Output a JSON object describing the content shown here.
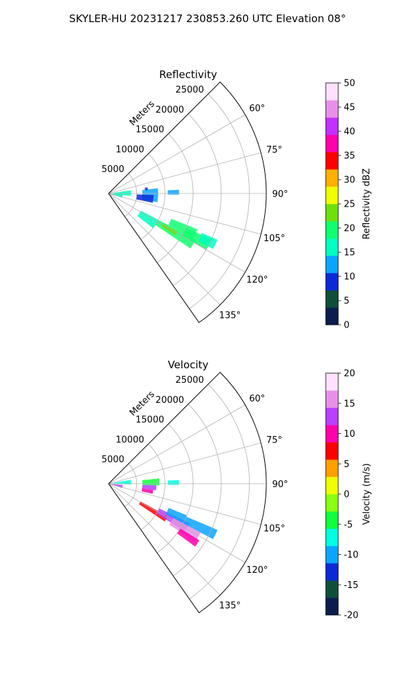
{
  "figure": {
    "title": "SKYLER-HU  20231217  230853.260 UTC Elevation 08°"
  },
  "chart_data": [
    {
      "type": "heatmap",
      "subtype": "polar-sector",
      "title": "Reflectivity",
      "radial_axis_label": "Meters",
      "radial_range": [
        0,
        28000
      ],
      "radial_ticks": [
        5000,
        10000,
        15000,
        20000,
        25000
      ],
      "radial_tick_labels": [
        "5000",
        "10000",
        "15000",
        "20000",
        "25000"
      ],
      "azimuth_range_deg": [
        45,
        145
      ],
      "azimuth_ticks_deg": [
        60,
        75,
        90,
        105,
        120,
        135
      ],
      "azimuth_tick_labels": [
        "60°",
        "75°",
        "90°",
        "105°",
        "120°",
        "135°"
      ],
      "grid": true,
      "colorbar": {
        "label": "Reflectivity dBZ",
        "range": [
          0,
          50
        ],
        "ticks": [
          0,
          5,
          10,
          15,
          20,
          25,
          30,
          35,
          40,
          45,
          50
        ],
        "tick_labels": [
          "0",
          "5",
          "10",
          "15",
          "20",
          "25",
          "30",
          "35",
          "40",
          "45",
          "50"
        ],
        "colors": [
          "#0b1d4d",
          "#0f4f3a",
          "#0a2ad8",
          "#0aa5ff",
          "#00ffc0",
          "#10ff70",
          "#6fe00a",
          "#f0ff00",
          "#ffb000",
          "#ff0000",
          "#ff00aa",
          "#c030ff",
          "#e890e8",
          "#ffe0ff"
        ]
      },
      "echo_regions": [
        {
          "az": [
            93,
            108
          ],
          "r": [
            0,
            2500
          ],
          "value": 16
        },
        {
          "az": [
            82,
            96
          ],
          "r": [
            1000,
            4000
          ],
          "value": 15
        },
        {
          "az": [
            84,
            100
          ],
          "r": [
            6000,
            8800
          ],
          "value": 13
        },
        {
          "az": [
            92,
            102
          ],
          "r": [
            5000,
            8000
          ],
          "value": 9
        },
        {
          "az": [
            87,
            91
          ],
          "r": [
            10500,
            12500
          ],
          "value": 14
        },
        {
          "az": [
            81,
            85
          ],
          "r": [
            6500,
            7000
          ],
          "value": 8
        },
        {
          "az": [
            118,
            128
          ],
          "r": [
            6500,
            10000
          ],
          "value": 16
        },
        {
          "az": [
            118,
            124
          ],
          "r": [
            10000,
            17500
          ],
          "value": 20
        },
        {
          "az": [
            112,
            118
          ],
          "r": [
            12000,
            17000
          ],
          "value": 19
        },
        {
          "az": [
            114,
            120
          ],
          "r": [
            15000,
            20000
          ],
          "value": 18
        },
        {
          "az": [
            119,
            122
          ],
          "r": [
            11000,
            14000
          ],
          "value": 24
        },
        {
          "az": [
            113,
            118
          ],
          "r": [
            18000,
            21000
          ],
          "value": 17
        }
      ]
    },
    {
      "type": "heatmap",
      "subtype": "polar-sector",
      "title": "Velocity",
      "radial_axis_label": "Meters",
      "radial_range": [
        0,
        28000
      ],
      "radial_ticks": [
        5000,
        10000,
        15000,
        20000,
        25000
      ],
      "radial_tick_labels": [
        "5000",
        "10000",
        "15000",
        "20000",
        "25000"
      ],
      "azimuth_range_deg": [
        45,
        145
      ],
      "azimuth_ticks_deg": [
        60,
        75,
        90,
        105,
        120,
        135
      ],
      "azimuth_tick_labels": [
        "60°",
        "75°",
        "90°",
        "105°",
        "120°",
        "135°"
      ],
      "grid": true,
      "colorbar": {
        "label": "Velocity (m/s)",
        "range": [
          -20,
          20
        ],
        "ticks": [
          -20,
          -15,
          -10,
          -5,
          0,
          5,
          10,
          15,
          20
        ],
        "tick_labels": [
          "-20",
          "-15",
          "-10",
          "-5",
          "0",
          "5",
          "10",
          "15",
          "20"
        ],
        "colors": [
          "#0b1d4d",
          "#0f4f3a",
          "#0a2ad8",
          "#0aa5ff",
          "#00ffe0",
          "#10ff40",
          "#8aff10",
          "#f0ff00",
          "#ffa000",
          "#ff0000",
          "#ff00aa",
          "#b840ff",
          "#e890e8",
          "#ffe0ff"
        ]
      },
      "echo_regions": [
        {
          "az": [
            80,
            92
          ],
          "r": [
            1000,
            4000
          ],
          "value": -7
        },
        {
          "az": [
            95,
            108
          ],
          "r": [
            0,
            2500
          ],
          "value": 14
        },
        {
          "az": [
            84,
            92
          ],
          "r": [
            6000,
            9000
          ],
          "value": -5
        },
        {
          "az": [
            92,
            98
          ],
          "r": [
            6000,
            8500
          ],
          "value": 13
        },
        {
          "az": [
            98,
            103
          ],
          "r": [
            6000,
            8000
          ],
          "value": 10
        },
        {
          "az": [
            119,
            124
          ],
          "r": [
            6500,
            12000
          ],
          "value": 8
        },
        {
          "az": [
            116,
            122
          ],
          "r": [
            10000,
            16000
          ],
          "value": 14
        },
        {
          "az": [
            112,
            118
          ],
          "r": [
            11500,
            15000
          ],
          "value": -11
        },
        {
          "az": [
            118,
            124
          ],
          "r": [
            13000,
            18500
          ],
          "value": 15
        },
        {
          "az": [
            122,
            126
          ],
          "r": [
            15000,
            19000
          ],
          "value": 10
        },
        {
          "az": [
            113,
            118
          ],
          "r": [
            15000,
            21000
          ],
          "value": -11
        },
        {
          "az": [
            87,
            91
          ],
          "r": [
            10500,
            12500
          ],
          "value": -6
        }
      ]
    }
  ]
}
